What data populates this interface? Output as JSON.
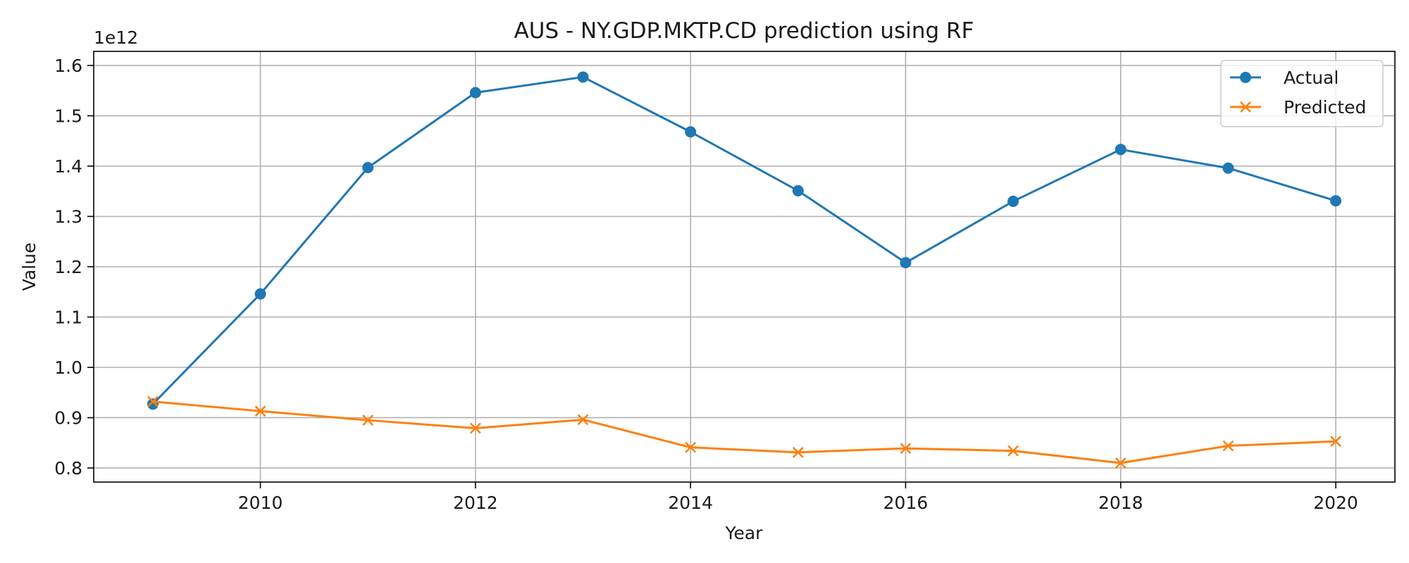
{
  "chart_data": {
    "type": "line",
    "title": "AUS - NY.GDP.MKTP.CD prediction using RF",
    "xlabel": "Year",
    "ylabel": "Value",
    "y_offset_label": "1e12",
    "x": [
      2009,
      2010,
      2011,
      2012,
      2013,
      2014,
      2015,
      2016,
      2017,
      2018,
      2019,
      2020
    ],
    "xlim": [
      2008.45,
      2020.55
    ],
    "ylim": [
      0.772,
      1.628
    ],
    "y_multiplier": 1000000000000.0,
    "xticks": [
      2010,
      2012,
      2014,
      2016,
      2018,
      2020
    ],
    "xtick_labels": [
      "2010",
      "2012",
      "2014",
      "2016",
      "2018",
      "2020"
    ],
    "yticks": [
      0.8,
      0.9,
      1.0,
      1.1,
      1.2,
      1.3,
      1.4,
      1.5,
      1.6
    ],
    "ytick_labels": [
      "0.8",
      "0.9",
      "1.0",
      "1.1",
      "1.2",
      "1.3",
      "1.4",
      "1.5",
      "1.6"
    ],
    "grid": true,
    "legend_position": "top-right",
    "series": [
      {
        "name": "Actual",
        "color": "#1f77b4",
        "marker": "circle",
        "values": [
          0.927,
          1.146,
          1.397,
          1.546,
          1.577,
          1.468,
          1.351,
          1.208,
          1.33,
          1.433,
          1.396,
          1.331
        ]
      },
      {
        "name": "Predicted",
        "color": "#ff7f0e",
        "marker": "x",
        "values": [
          0.932,
          0.913,
          0.895,
          0.879,
          0.896,
          0.841,
          0.831,
          0.839,
          0.834,
          0.81,
          0.844,
          0.853
        ]
      }
    ]
  }
}
